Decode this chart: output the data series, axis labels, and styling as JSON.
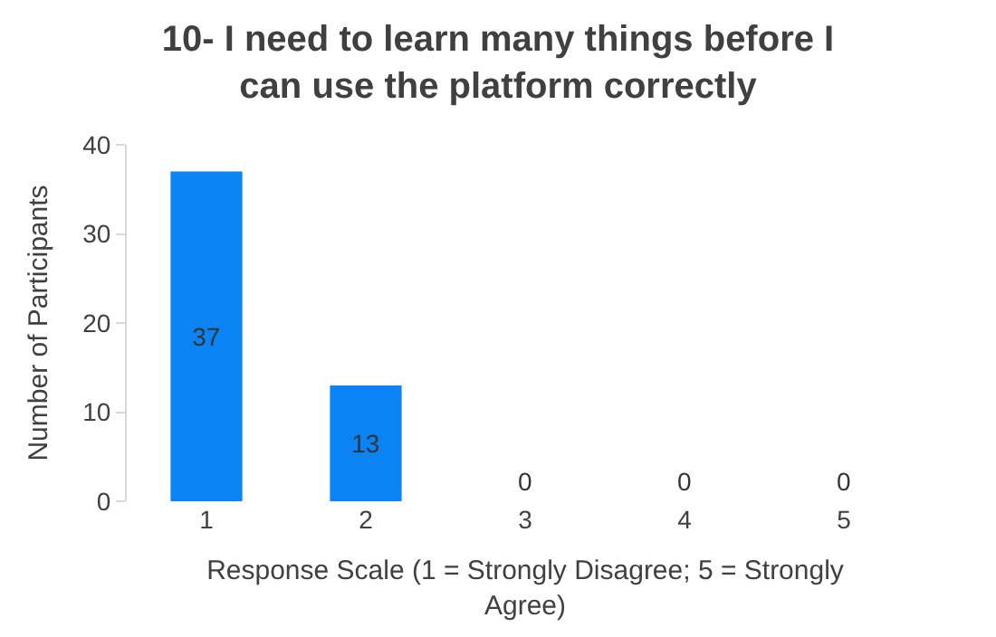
{
  "chart_data": {
    "type": "bar",
    "title": "10- I need to learn many things before I can use the platform correctly",
    "xlabel": "Response Scale (1 = Strongly Disagree; 5 = Strongly Agree)",
    "ylabel": "Number of Participants",
    "categories": [
      "1",
      "2",
      "3",
      "4",
      "5"
    ],
    "values": [
      37,
      13,
      0,
      0,
      0
    ],
    "color": "#0a84f5",
    "ylim": [
      0,
      40
    ],
    "yticks": [
      0,
      10,
      20,
      30,
      40
    ],
    "grid": false,
    "data_labels": true
  }
}
